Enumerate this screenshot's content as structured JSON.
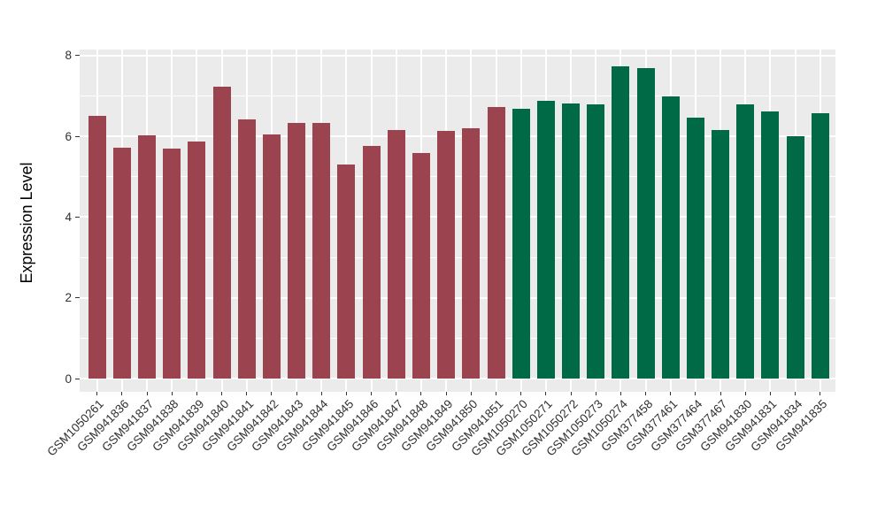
{
  "figure": {
    "background": "#FFFFFF",
    "panel_background": "#EBEBEB",
    "gridline_color": "#FFFFFF",
    "tick_mark_color": "#333333",
    "axis_text_color": "#303030",
    "axis_title_color": "#000000"
  },
  "chart_data": {
    "type": "bar",
    "title": "",
    "xlabel": "",
    "ylabel": "Expression Level",
    "ylim": [
      0,
      8
    ],
    "yticks": [
      0,
      2,
      4,
      6,
      8
    ],
    "grid": "on",
    "legend": "none",
    "groups": [
      {
        "name": "group-1",
        "color": "#9B4450"
      },
      {
        "name": "group-2",
        "color": "#006A47"
      }
    ],
    "categories": [
      "GSM1050261",
      "GSM941836",
      "GSM941837",
      "GSM941838",
      "GSM941839",
      "GSM941840",
      "GSM941841",
      "GSM941842",
      "GSM941843",
      "GSM941844",
      "GSM941845",
      "GSM941846",
      "GSM941847",
      "GSM941848",
      "GSM941849",
      "GSM941850",
      "GSM941851",
      "GSM1050270",
      "GSM1050271",
      "GSM1050272",
      "GSM1050273",
      "GSM1050274",
      "GSM377458",
      "GSM377461",
      "GSM377464",
      "GSM377467",
      "GSM941830",
      "GSM941831",
      "GSM941834",
      "GSM941835"
    ],
    "values": [
      6.5,
      5.72,
      6.02,
      5.7,
      5.88,
      7.23,
      6.41,
      6.04,
      6.32,
      6.32,
      5.3,
      5.76,
      6.16,
      5.58,
      6.14,
      6.2,
      6.73,
      6.67,
      6.88,
      6.82,
      6.78,
      7.74,
      7.68,
      6.98,
      6.46,
      6.16,
      6.79,
      6.61,
      6.01,
      6.57
    ],
    "bar_group_index": [
      0,
      0,
      0,
      0,
      0,
      0,
      0,
      0,
      0,
      0,
      0,
      0,
      0,
      0,
      0,
      0,
      0,
      1,
      1,
      1,
      1,
      1,
      1,
      1,
      1,
      1,
      1,
      1,
      1,
      1
    ]
  }
}
